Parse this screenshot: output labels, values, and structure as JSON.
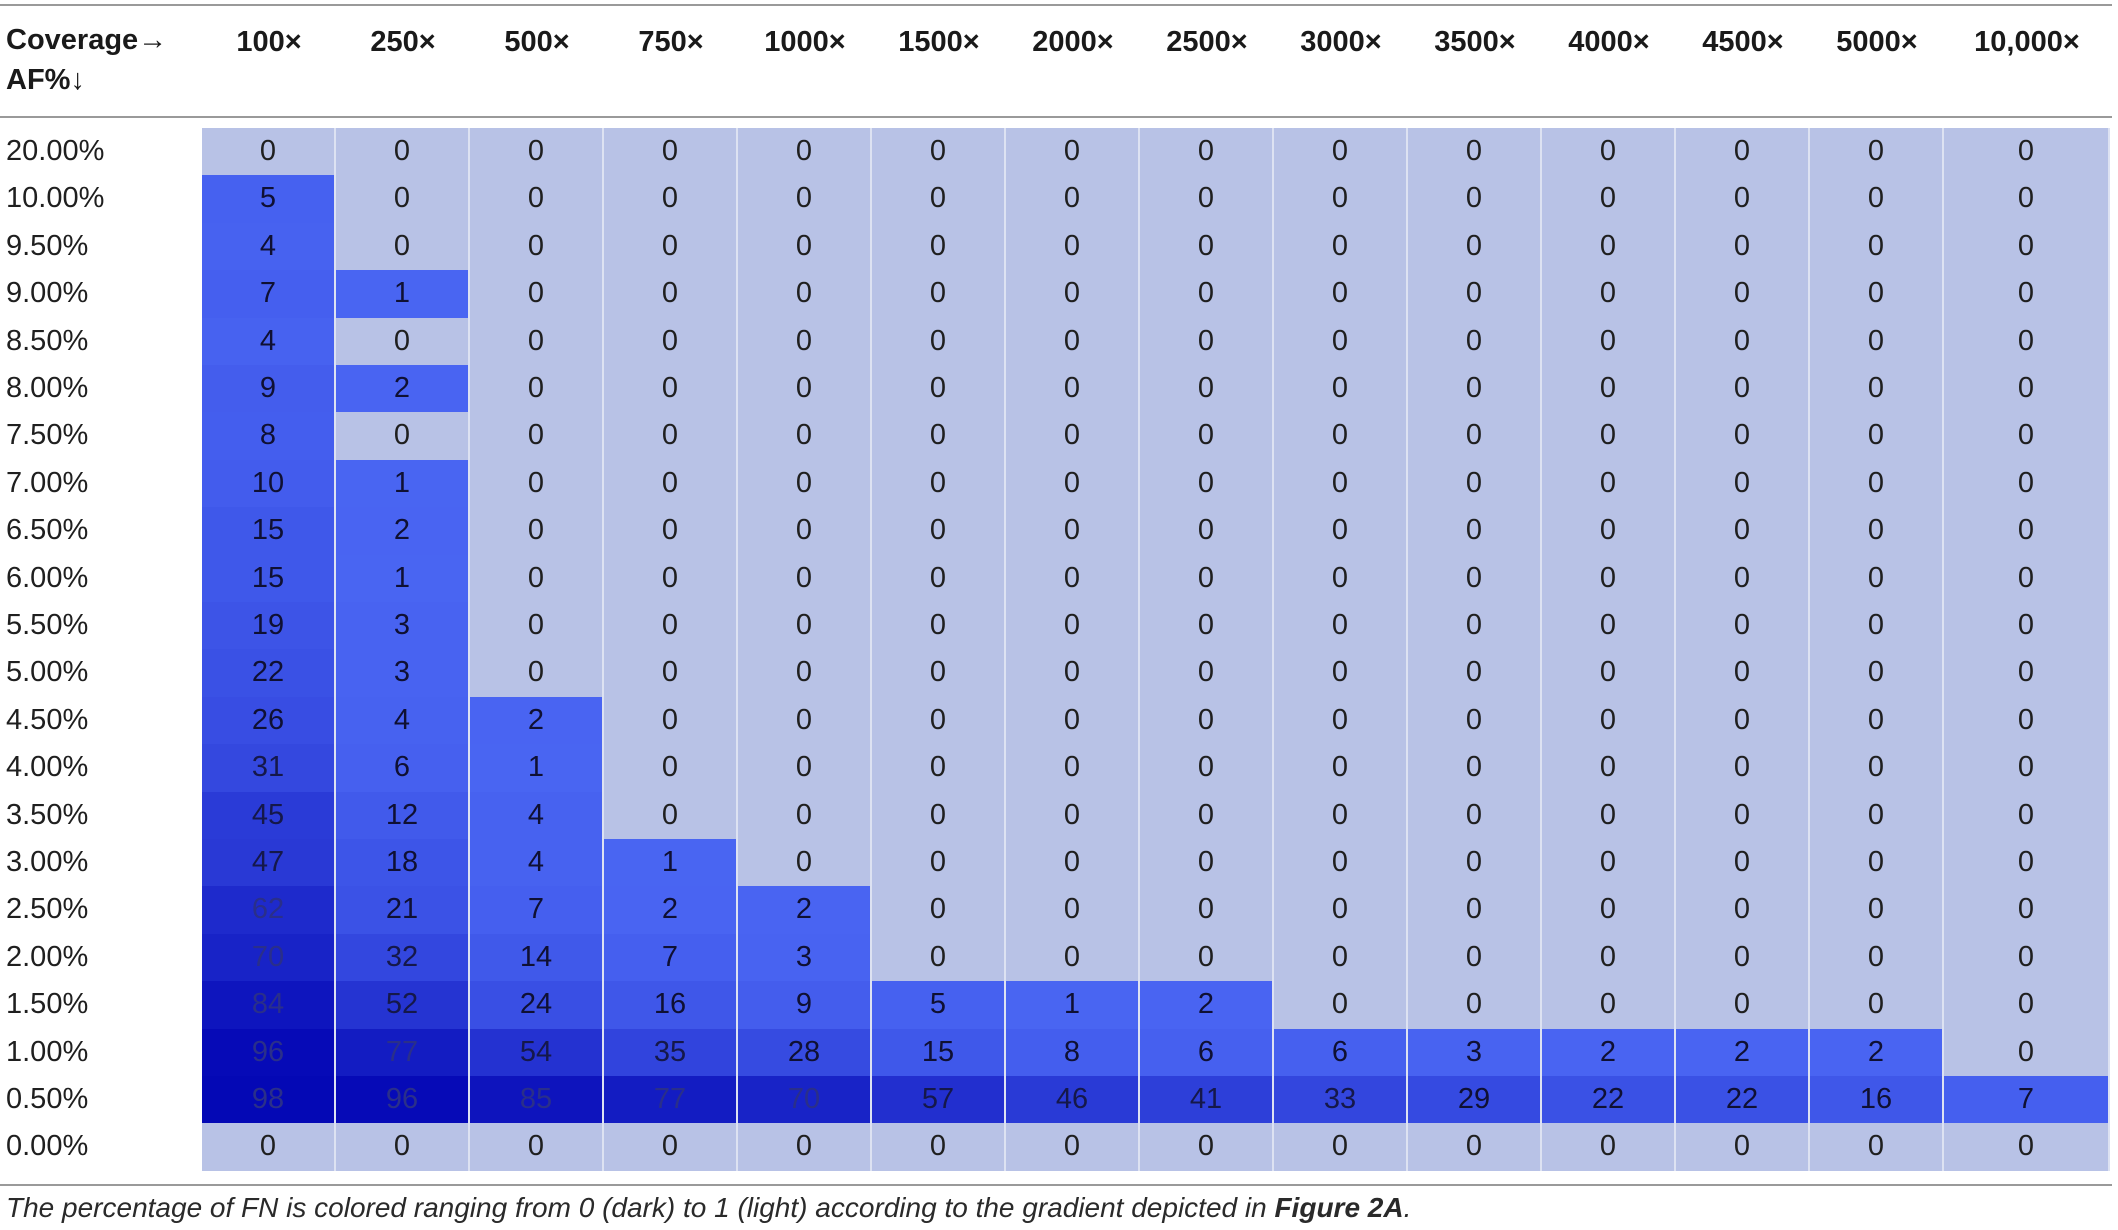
{
  "table": {
    "corner_label_line1": "Coverage→",
    "corner_label_line2": "AF%↓",
    "columns": [
      "100×",
      "250×",
      "500×",
      "750×",
      "1000×",
      "1500×",
      "2000×",
      "2500×",
      "3000×",
      "3500×",
      "4000×",
      "4500×",
      "5000×",
      "10,000×"
    ],
    "rows": [
      {
        "af": "20.00%",
        "values": [
          0,
          0,
          0,
          0,
          0,
          0,
          0,
          0,
          0,
          0,
          0,
          0,
          0,
          0
        ]
      },
      {
        "af": "10.00%",
        "values": [
          5,
          0,
          0,
          0,
          0,
          0,
          0,
          0,
          0,
          0,
          0,
          0,
          0,
          0
        ]
      },
      {
        "af": "9.50%",
        "values": [
          4,
          0,
          0,
          0,
          0,
          0,
          0,
          0,
          0,
          0,
          0,
          0,
          0,
          0
        ]
      },
      {
        "af": "9.00%",
        "values": [
          7,
          1,
          0,
          0,
          0,
          0,
          0,
          0,
          0,
          0,
          0,
          0,
          0,
          0
        ]
      },
      {
        "af": "8.50%",
        "values": [
          4,
          0,
          0,
          0,
          0,
          0,
          0,
          0,
          0,
          0,
          0,
          0,
          0,
          0
        ]
      },
      {
        "af": "8.00%",
        "values": [
          9,
          2,
          0,
          0,
          0,
          0,
          0,
          0,
          0,
          0,
          0,
          0,
          0,
          0
        ]
      },
      {
        "af": "7.50%",
        "values": [
          8,
          0,
          0,
          0,
          0,
          0,
          0,
          0,
          0,
          0,
          0,
          0,
          0,
          0
        ]
      },
      {
        "af": "7.00%",
        "values": [
          10,
          1,
          0,
          0,
          0,
          0,
          0,
          0,
          0,
          0,
          0,
          0,
          0,
          0
        ]
      },
      {
        "af": "6.50%",
        "values": [
          15,
          2,
          0,
          0,
          0,
          0,
          0,
          0,
          0,
          0,
          0,
          0,
          0,
          0
        ]
      },
      {
        "af": "6.00%",
        "values": [
          15,
          1,
          0,
          0,
          0,
          0,
          0,
          0,
          0,
          0,
          0,
          0,
          0,
          0
        ]
      },
      {
        "af": "5.50%",
        "values": [
          19,
          3,
          0,
          0,
          0,
          0,
          0,
          0,
          0,
          0,
          0,
          0,
          0,
          0
        ]
      },
      {
        "af": "5.00%",
        "values": [
          22,
          3,
          0,
          0,
          0,
          0,
          0,
          0,
          0,
          0,
          0,
          0,
          0,
          0
        ]
      },
      {
        "af": "4.50%",
        "values": [
          26,
          4,
          2,
          0,
          0,
          0,
          0,
          0,
          0,
          0,
          0,
          0,
          0,
          0
        ]
      },
      {
        "af": "4.00%",
        "values": [
          31,
          6,
          1,
          0,
          0,
          0,
          0,
          0,
          0,
          0,
          0,
          0,
          0,
          0
        ]
      },
      {
        "af": "3.50%",
        "values": [
          45,
          12,
          4,
          0,
          0,
          0,
          0,
          0,
          0,
          0,
          0,
          0,
          0,
          0
        ]
      },
      {
        "af": "3.00%",
        "values": [
          47,
          18,
          4,
          1,
          0,
          0,
          0,
          0,
          0,
          0,
          0,
          0,
          0,
          0
        ]
      },
      {
        "af": "2.50%",
        "values": [
          62,
          21,
          7,
          2,
          2,
          0,
          0,
          0,
          0,
          0,
          0,
          0,
          0,
          0
        ]
      },
      {
        "af": "2.00%",
        "values": [
          70,
          32,
          14,
          7,
          3,
          0,
          0,
          0,
          0,
          0,
          0,
          0,
          0,
          0
        ]
      },
      {
        "af": "1.50%",
        "values": [
          84,
          52,
          24,
          16,
          9,
          5,
          1,
          2,
          0,
          0,
          0,
          0,
          0,
          0
        ]
      },
      {
        "af": "1.00%",
        "values": [
          96,
          77,
          54,
          35,
          28,
          15,
          8,
          6,
          6,
          3,
          2,
          2,
          2,
          0
        ]
      },
      {
        "af": "0.50%",
        "values": [
          98,
          96,
          85,
          77,
          70,
          57,
          46,
          41,
          33,
          29,
          22,
          22,
          16,
          7
        ]
      },
      {
        "af": "0.00%",
        "values": [
          0,
          0,
          0,
          0,
          0,
          0,
          0,
          0,
          0,
          0,
          0,
          0,
          0,
          0
        ]
      }
    ]
  },
  "caption": {
    "text_before": "The percentage of FN is colored ranging from 0 (dark) to 1 (light) according to the gradient depicted in ",
    "bold_ref": "Figure 2A",
    "text_after": "."
  },
  "colors": {
    "zero_cell": "#b8c2e6",
    "light_blue": "#4a66f3",
    "dark_blue": "#0306b4",
    "text_dark": "#1f1f1f"
  }
}
